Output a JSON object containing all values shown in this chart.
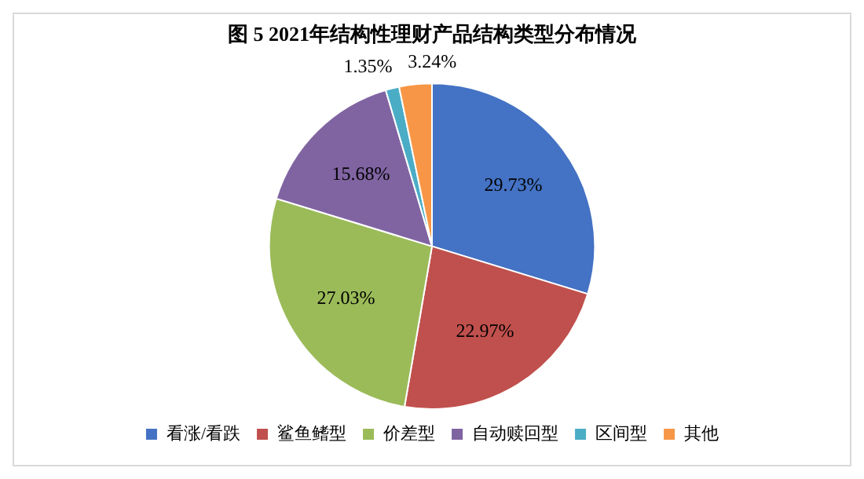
{
  "chart_data": {
    "type": "pie",
    "title": "图 5 2021年结构性理财产品结构类型分布情况",
    "categories": [
      "看涨/看跌",
      "鲨鱼鳍型",
      "价差型",
      "自动赎回型",
      "区间型",
      "其他"
    ],
    "values": [
      29.73,
      22.97,
      27.03,
      15.68,
      1.35,
      3.24
    ],
    "value_labels": [
      "29.73%",
      "22.97%",
      "27.03%",
      "15.68%",
      "1.35%",
      "3.24%"
    ],
    "colors": [
      "#4472c4",
      "#c0504d",
      "#9bbb59",
      "#8064a2",
      "#4bacc6",
      "#f79646"
    ],
    "legend": "bottom"
  }
}
